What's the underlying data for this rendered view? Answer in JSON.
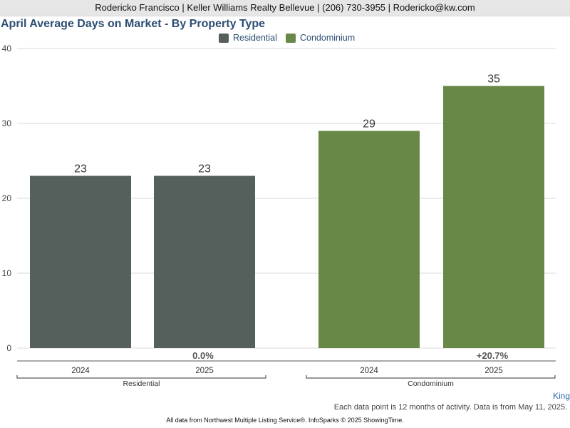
{
  "header": {
    "contact": "Rodericko Francisco | Keller Williams Realty Bellevue | (206) 730-3955 | Rodericko@kw.com"
  },
  "colors": {
    "residential": "#555f5b",
    "condominium": "#688848",
    "title": "#2c4e72"
  },
  "chart_data": {
    "type": "bar",
    "title": "April Average Days on Market - By Property Type",
    "xlabel": "",
    "ylabel": "",
    "ylim": [
      0,
      40
    ],
    "yticks": [
      0,
      10,
      20,
      30,
      40
    ],
    "grid": true,
    "legend_position": "top-center",
    "groups": [
      {
        "name": "Residential",
        "categories": [
          "2024",
          "2025"
        ],
        "values": [
          23,
          23
        ],
        "change": "0.0%"
      },
      {
        "name": "Condominium",
        "categories": [
          "2024",
          "2025"
        ],
        "values": [
          29,
          35
        ],
        "change": "+20.7%"
      }
    ],
    "series": [
      {
        "name": "Residential",
        "values": [
          23,
          23
        ]
      },
      {
        "name": "Condominium",
        "values": [
          29,
          35
        ]
      }
    ]
  },
  "footer": {
    "region": "King",
    "note": "Each data point is 12 months of activity. Data is from May 11, 2025.",
    "source": "All data from Northwest Multiple Listing Service®. InfoSparks © 2025 ShowingTime."
  }
}
